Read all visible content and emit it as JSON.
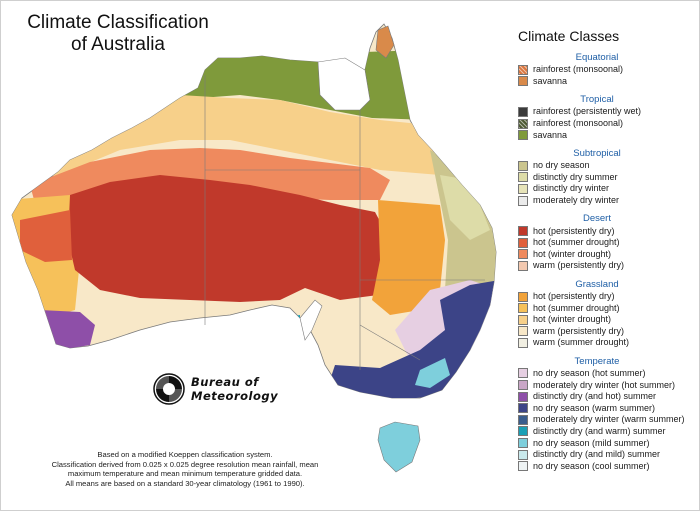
{
  "title": {
    "line1": "Climate Classification",
    "line2": "of Australia"
  },
  "legend": {
    "title": "Climate Classes",
    "groups": [
      {
        "name": "Equatorial",
        "items": [
          {
            "label": "rainforest (monsoonal)",
            "color": "#d9753d",
            "hatch": true
          },
          {
            "label": "savanna",
            "color": "#d98a4a",
            "hatch": false
          }
        ]
      },
      {
        "name": "Tropical",
        "items": [
          {
            "label": "rainforest (persistently wet)",
            "color": "#3b3b3b",
            "hatch": false
          },
          {
            "label": "rainforest (monsoonal)",
            "color": "#4d5a33",
            "hatch": true
          },
          {
            "label": "savanna",
            "color": "#7f9a3b",
            "hatch": false
          }
        ]
      },
      {
        "name": "Subtropical",
        "items": [
          {
            "label": "no dry season",
            "color": "#cbc58e",
            "hatch": false
          },
          {
            "label": "distinctly dry summer",
            "color": "#dddca8",
            "hatch": false
          },
          {
            "label": "distinctly dry winter",
            "color": "#e6e3b8",
            "hatch": false
          },
          {
            "label": "moderately dry winter",
            "color": "#ebebeb",
            "hatch": false
          }
        ]
      },
      {
        "name": "Desert",
        "items": [
          {
            "label": "hot (persistently dry)",
            "color": "#c0392b",
            "hatch": false
          },
          {
            "label": "hot (summer drought)",
            "color": "#e0603c",
            "hatch": false
          },
          {
            "label": "hot (winter drought)",
            "color": "#ef8a5e",
            "hatch": false
          },
          {
            "label": "warm (persistently dry)",
            "color": "#f3c9b0",
            "hatch": false
          }
        ]
      },
      {
        "name": "Grassland",
        "items": [
          {
            "label": "hot (persistently dry)",
            "color": "#f2a33a",
            "hatch": false
          },
          {
            "label": "hot (summer drought)",
            "color": "#f6c15a",
            "hatch": false
          },
          {
            "label": "hot (winter drought)",
            "color": "#f7d08a",
            "hatch": false
          },
          {
            "label": "warm (persistently dry)",
            "color": "#f8e8c8",
            "hatch": false
          },
          {
            "label": "warm (summer drought)",
            "color": "#f1efe2",
            "hatch": false
          }
        ]
      },
      {
        "name": "Temperate",
        "items": [
          {
            "label": "no dry season (hot summer)",
            "color": "#e6cfe2",
            "hatch": false
          },
          {
            "label": "moderately dry winter (hot summer)",
            "color": "#c9a6c6",
            "hatch": false
          },
          {
            "label": "distinctly dry (and hot) summer",
            "color": "#8e4fa8",
            "hatch": false
          },
          {
            "label": "no dry season (warm summer)",
            "color": "#3c4487",
            "hatch": false
          },
          {
            "label": "moderately dry winter (warm summer)",
            "color": "#3a5d8d",
            "hatch": false
          },
          {
            "label": "distinctly dry (and warm) summer",
            "color": "#1a9fb5",
            "hatch": false
          },
          {
            "label": "no dry season (mild summer)",
            "color": "#7ecfdc",
            "hatch": false
          },
          {
            "label": "distinctly dry (and mild) summer",
            "color": "#c9e9ec",
            "hatch": false
          },
          {
            "label": "no dry season (cool summer)",
            "color": "#eef3f4",
            "hatch": false
          }
        ]
      }
    ]
  },
  "logo": {
    "line1": "Bureau of",
    "line2": "Meteorology"
  },
  "notes": [
    "Based on a modified Koeppen classification system.",
    "Classification derived from 0.025 x 0.025 degree resolution mean rainfall, mean",
    "maximum temperature and mean minimum temperature gridded data.",
    "All means are based on a standard 30-year climatology (1961 to 1990)."
  ],
  "map_colors": {
    "desert_hot_dry": "#c0392b",
    "desert_summer_drought": "#e0603c",
    "desert_winter_drought": "#ef8a5e",
    "grassland_hot_dry": "#f2a33a",
    "grassland_summer": "#f6c15a",
    "grassland_winter": "#f7d08a",
    "grassland_warm": "#f8e8c8",
    "tropical_savanna": "#7f9a3b",
    "equatorial_savanna": "#d98a4a",
    "subtropical": "#cbc58e",
    "subtropical_dry_summer": "#dddca8",
    "temperate_hot": "#e6cfe2",
    "temperate_warm": "#3c4487",
    "temperate_mild": "#7ecfdc",
    "temperate_dry_hot": "#8e4fa8",
    "temperate_dry_warm": "#1a9fb5",
    "boundary": "#7a7a7a"
  }
}
